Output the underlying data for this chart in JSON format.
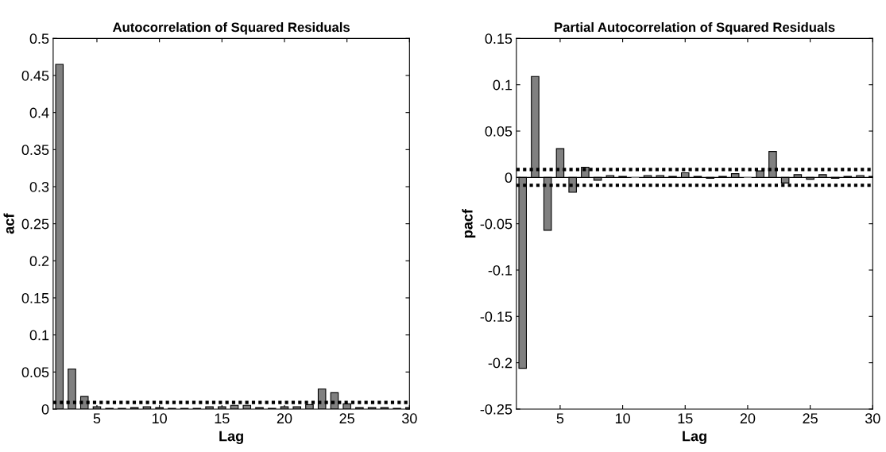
{
  "chart_data": [
    {
      "type": "bar",
      "title": "Autocorrelation of Squared Residuals",
      "xlabel": "Lag",
      "ylabel": "acf",
      "x": [
        2,
        3,
        4,
        5,
        6,
        7,
        8,
        9,
        10,
        11,
        12,
        13,
        14,
        15,
        16,
        17,
        18,
        19,
        20,
        21,
        22,
        23,
        24,
        25,
        26,
        27,
        28,
        29,
        30
      ],
      "series": [
        {
          "color": "#808080",
          "values": [
            0.465,
            0.054,
            0.017,
            0.003,
            0.001,
            0.001,
            0.002,
            0.003,
            0.002,
            0.001,
            0.001,
            0.001,
            0.003,
            0.003,
            0.005,
            0.005,
            0.002,
            0.001,
            0.003,
            0.003,
            0.006,
            0.027,
            0.022,
            0.007,
            0.002,
            0.002,
            0.002,
            0.001,
            0.002
          ]
        }
      ],
      "xlim": [
        1.5,
        30
      ],
      "xticks": [
        5,
        10,
        15,
        20,
        25,
        30
      ],
      "ylim": [
        0,
        0.5
      ],
      "yticks": [
        0,
        0.05,
        0.1,
        0.15,
        0.2,
        0.25,
        0.3,
        0.35,
        0.4,
        0.45,
        0.5
      ],
      "ref_lines": [
        {
          "axis": "y",
          "value": 0.009,
          "color": "#000000",
          "line_style": "dotted"
        }
      ],
      "grid": false,
      "legend": false
    },
    {
      "type": "bar",
      "title": "Partial Autocorrelation of Squared Residuals",
      "xlabel": "Lag",
      "ylabel": "pacf",
      "x": [
        2,
        3,
        4,
        5,
        6,
        7,
        8,
        9,
        10,
        11,
        12,
        13,
        14,
        15,
        16,
        17,
        18,
        19,
        20,
        21,
        22,
        23,
        24,
        25,
        26,
        27,
        28,
        29,
        30
      ],
      "series": [
        {
          "color": "#808080",
          "values": [
            -0.206,
            0.109,
            -0.057,
            0.031,
            -0.016,
            0.011,
            -0.003,
            0.002,
            0.001,
            0,
            0.002,
            0.002,
            0.001,
            0.005,
            0.001,
            -0.001,
            0.001,
            0.004,
            0,
            0.007,
            0.028,
            -0.006,
            0.003,
            -0.002,
            0.003,
            -0.001,
            0.001,
            0.002,
            0.001
          ]
        }
      ],
      "xlim": [
        1.5,
        30
      ],
      "xticks": [
        5,
        10,
        15,
        20,
        25,
        30
      ],
      "ylim": [
        -0.25,
        0.15
      ],
      "yticks": [
        -0.25,
        -0.2,
        -0.15,
        -0.1,
        -0.05,
        0,
        0.05,
        0.1,
        0.15
      ],
      "ref_lines": [
        {
          "axis": "y",
          "value": 0.0085,
          "color": "#000000",
          "line_style": "dotted"
        },
        {
          "axis": "y",
          "value": -0.0085,
          "color": "#000000",
          "line_style": "dotted"
        },
        {
          "axis": "y",
          "value": 0,
          "color": "#000000",
          "line_style": "solid"
        }
      ],
      "grid": false,
      "legend": false
    }
  ]
}
